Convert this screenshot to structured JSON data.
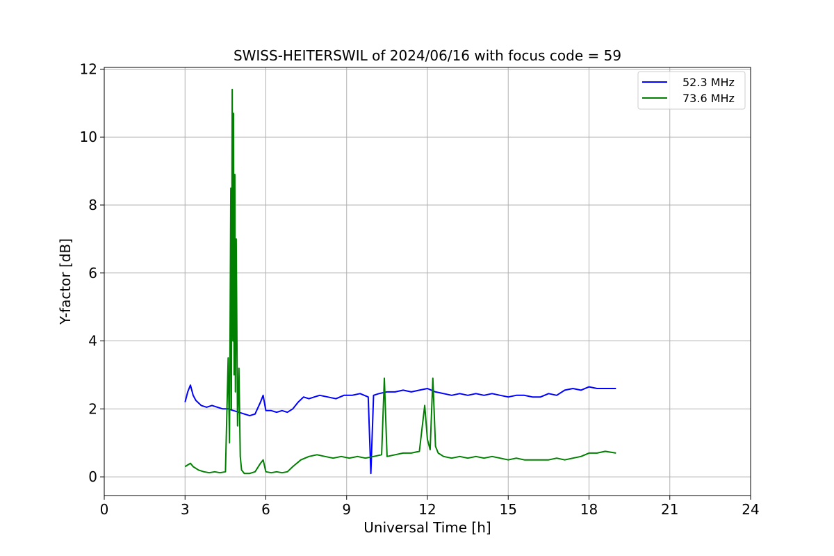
{
  "chart_data": {
    "type": "line",
    "title": "SWISS-HEITERSWIL of 2024/06/16 with focus code = 59",
    "xlabel": "Universal Time [h]",
    "ylabel": "Y-factor [dB]",
    "xlim": [
      0,
      24
    ],
    "ylim": [
      -0.55,
      12.05
    ],
    "xticks": [
      0,
      3,
      6,
      9,
      12,
      15,
      18,
      21,
      24
    ],
    "yticks": [
      0,
      2,
      4,
      6,
      8,
      10,
      12
    ],
    "grid": true,
    "legend_position": "top-right",
    "series": [
      {
        "name": "52.3 MHz",
        "color": "#0000ff",
        "x": [
          3.0,
          3.1,
          3.2,
          3.3,
          3.4,
          3.6,
          3.8,
          4.0,
          4.2,
          4.4,
          4.6,
          4.8,
          5.0,
          5.2,
          5.4,
          5.6,
          5.8,
          5.9,
          6.0,
          6.2,
          6.4,
          6.6,
          6.8,
          7.0,
          7.2,
          7.4,
          7.6,
          7.8,
          8.0,
          8.3,
          8.6,
          8.9,
          9.2,
          9.5,
          9.8,
          9.9,
          10.0,
          10.2,
          10.5,
          10.8,
          11.1,
          11.4,
          11.7,
          12.0,
          12.3,
          12.6,
          12.9,
          13.2,
          13.5,
          13.8,
          14.1,
          14.4,
          14.7,
          15.0,
          15.3,
          15.6,
          15.9,
          16.2,
          16.5,
          16.8,
          17.1,
          17.4,
          17.7,
          18.0,
          18.3,
          18.6,
          19.0
        ],
        "values": [
          2.2,
          2.5,
          2.7,
          2.4,
          2.25,
          2.1,
          2.05,
          2.1,
          2.05,
          2.0,
          2.0,
          1.95,
          1.9,
          1.85,
          1.8,
          1.85,
          2.2,
          2.4,
          1.95,
          1.95,
          1.9,
          1.95,
          1.9,
          2.0,
          2.2,
          2.35,
          2.3,
          2.35,
          2.4,
          2.35,
          2.3,
          2.4,
          2.4,
          2.45,
          2.35,
          0.1,
          2.4,
          2.45,
          2.5,
          2.5,
          2.55,
          2.5,
          2.55,
          2.6,
          2.5,
          2.45,
          2.4,
          2.45,
          2.4,
          2.45,
          2.4,
          2.45,
          2.4,
          2.35,
          2.4,
          2.4,
          2.35,
          2.35,
          2.45,
          2.4,
          2.55,
          2.6,
          2.55,
          2.65,
          2.6,
          2.6,
          2.6
        ]
      },
      {
        "name": "73.6 MHz",
        "color": "#008000",
        "x": [
          3.0,
          3.1,
          3.2,
          3.3,
          3.5,
          3.7,
          3.9,
          4.1,
          4.3,
          4.5,
          4.6,
          4.65,
          4.7,
          4.72,
          4.75,
          4.78,
          4.8,
          4.82,
          4.85,
          4.87,
          4.9,
          4.95,
          5.0,
          5.05,
          5.1,
          5.2,
          5.4,
          5.6,
          5.8,
          5.9,
          6.0,
          6.2,
          6.4,
          6.6,
          6.8,
          7.0,
          7.3,
          7.6,
          7.9,
          8.2,
          8.5,
          8.8,
          9.1,
          9.4,
          9.7,
          10.0,
          10.3,
          10.4,
          10.5,
          10.8,
          11.1,
          11.4,
          11.7,
          11.9,
          12.0,
          12.1,
          12.2,
          12.3,
          12.4,
          12.6,
          12.9,
          13.2,
          13.5,
          13.8,
          14.1,
          14.4,
          14.7,
          15.0,
          15.3,
          15.6,
          15.9,
          16.2,
          16.5,
          16.8,
          17.1,
          17.4,
          17.7,
          18.0,
          18.3,
          18.6,
          19.0
        ],
        "values": [
          0.3,
          0.35,
          0.4,
          0.3,
          0.2,
          0.15,
          0.12,
          0.15,
          0.12,
          0.15,
          3.5,
          1.0,
          8.5,
          2.0,
          11.4,
          4.0,
          10.7,
          3.0,
          8.9,
          2.5,
          7.0,
          1.5,
          3.2,
          0.6,
          0.2,
          0.1,
          0.1,
          0.15,
          0.4,
          0.5,
          0.15,
          0.12,
          0.15,
          0.12,
          0.15,
          0.3,
          0.5,
          0.6,
          0.65,
          0.6,
          0.55,
          0.6,
          0.55,
          0.6,
          0.55,
          0.6,
          0.65,
          2.9,
          0.6,
          0.65,
          0.7,
          0.7,
          0.75,
          2.1,
          1.1,
          0.8,
          2.9,
          0.9,
          0.7,
          0.6,
          0.55,
          0.6,
          0.55,
          0.6,
          0.55,
          0.6,
          0.55,
          0.5,
          0.55,
          0.5,
          0.5,
          0.5,
          0.5,
          0.55,
          0.5,
          0.55,
          0.6,
          0.7,
          0.7,
          0.75,
          0.7
        ]
      }
    ]
  }
}
